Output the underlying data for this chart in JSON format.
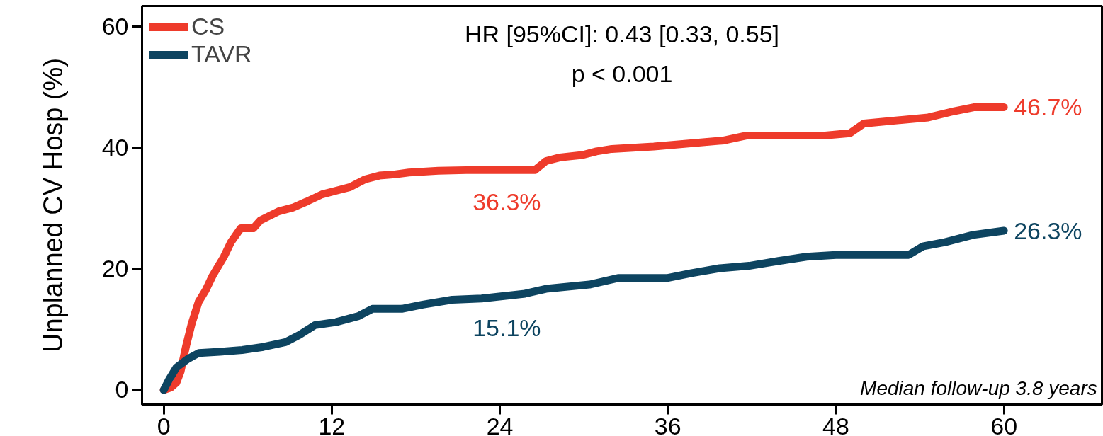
{
  "chart_data": {
    "type": "line",
    "ylabel": "Unplanned CV Hosp (%)",
    "xlim": [
      -1.55,
      67
    ],
    "ylim": [
      -2.4,
      63.4
    ],
    "xticks": [
      0,
      12,
      24,
      36,
      48,
      60
    ],
    "yticks": [
      0,
      20,
      40,
      60
    ],
    "grid": false,
    "legend": "top left",
    "marker": "none",
    "line_style": "solid",
    "series": [
      {
        "name": "CS",
        "color": "#ee3b2b",
        "x": [
          0,
          0.5,
          0.9,
          1.2,
          1.6,
          2,
          2.5,
          3,
          3.5,
          4.3,
          4.8,
          5.5,
          6.4,
          6.9,
          8.2,
          9.2,
          10.2,
          11.3,
          12.3,
          13.3,
          14.4,
          15.4,
          16.5,
          17.5,
          19.6,
          21.6,
          26.5,
          27.3,
          28.3,
          29.9,
          30.9,
          32,
          35,
          40,
          41.6,
          47.1,
          49,
          50,
          54.6,
          56.2,
          57.9,
          60
        ],
        "values": [
          0,
          0.4,
          1.2,
          3,
          7.3,
          11,
          14.6,
          16.5,
          18.9,
          22,
          24.4,
          26.7,
          26.7,
          28,
          29.5,
          30.1,
          31.1,
          32.3,
          32.9,
          33.5,
          34.8,
          35.4,
          35.6,
          35.9,
          36.2,
          36.3,
          36.3,
          37.8,
          38.4,
          38.8,
          39.4,
          39.8,
          40.2,
          41.2,
          42,
          42,
          42.4,
          44,
          45,
          45.9,
          46.7,
          46.7
        ]
      },
      {
        "name": "TAVR",
        "color": "#0d4460",
        "x": [
          0,
          0.4,
          0.9,
          1.7,
          2.5,
          4,
          5.6,
          7.1,
          8.7,
          9.7,
          10.8,
          12.3,
          13.9,
          14.9,
          17,
          18.5,
          20.6,
          22.7,
          25.8,
          27.3,
          30.4,
          32.5,
          36,
          37.7,
          39.7,
          41.8,
          43.9,
          45.9,
          48,
          53.2,
          54.2,
          55.8,
          57.8,
          60
        ],
        "values": [
          0,
          1.8,
          3.7,
          5.1,
          6.1,
          6.3,
          6.6,
          7.1,
          7.9,
          9.1,
          10.7,
          11.2,
          12.2,
          13.4,
          13.4,
          14.1,
          14.9,
          15.1,
          15.9,
          16.7,
          17.4,
          18.5,
          18.5,
          19.3,
          20.1,
          20.5,
          21.3,
          22,
          22.3,
          22.3,
          23.7,
          24.4,
          25.6,
          26.3
        ]
      }
    ],
    "annotations": [
      "HR [95%CI]: 0.43 [0.33, 0.55]",
      "p < 0.001",
      "Median follow-up 3.8 years",
      "46.7%",
      "26.3%",
      "36.3%",
      "15.1%"
    ]
  }
}
